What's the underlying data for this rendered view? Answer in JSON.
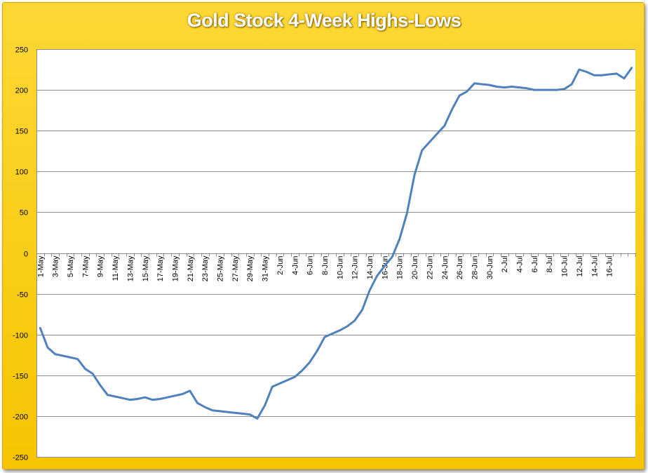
{
  "chart_data": {
    "type": "line",
    "title": "Gold Stock 4-Week Highs-Lows",
    "xlabel": "",
    "ylabel": "",
    "ylim": [
      -250,
      250
    ],
    "yticks": [
      250,
      200,
      150,
      100,
      50,
      0,
      -50,
      -100,
      -150,
      -200,
      -250
    ],
    "grid": true,
    "legend": "none",
    "x_tick_labels": [
      "1-May",
      "3-May",
      "5-May",
      "7-May",
      "9-May",
      "11-May",
      "13-May",
      "15-May",
      "17-May",
      "19-May",
      "21-May",
      "23-May",
      "25-May",
      "27-May",
      "29-May",
      "31-May",
      "2-Jun",
      "4-Jun",
      "6-Jun",
      "8-Jun",
      "10-Jun",
      "12-Jun",
      "14-Jun",
      "16-Jun",
      "18-Jun",
      "20-Jun",
      "22-Jun",
      "24-Jun",
      "26-Jun",
      "28-Jun",
      "30-Jun",
      "2-Jul",
      "4-Jul",
      "6-Jul",
      "8-Jul",
      "10-Jul",
      "12-Jul",
      "14-Jul",
      "16-Jul"
    ],
    "series": [
      {
        "color": "#4f81bd",
        "values": [
          -92,
          -116,
          -124,
          -126,
          -128,
          -130,
          -142,
          -148,
          -162,
          -174,
          -176,
          -178,
          -180,
          -179,
          -177,
          -180,
          -179,
          -177,
          -175,
          -173,
          -169,
          -184,
          -189,
          -193,
          -194,
          -195,
          -196,
          -197,
          -198,
          -203,
          -187,
          -164,
          -160,
          -156,
          -152,
          -144,
          -134,
          -120,
          -103,
          -99,
          -95,
          -90,
          -83,
          -70,
          -46,
          -28,
          -16,
          -5,
          17,
          49,
          96,
          126,
          136,
          146,
          156,
          176,
          193,
          198,
          208,
          207,
          206,
          204,
          203,
          204,
          203,
          202,
          200,
          200,
          200,
          200,
          201,
          207,
          225,
          222,
          218,
          218,
          219,
          220,
          214,
          227
        ]
      }
    ]
  },
  "colors": {
    "frame": "#f6c400",
    "plot_background": "#ffffff",
    "grid": "#8c8c8c",
    "line": "#4f81bd",
    "title_text": "#ffffff"
  }
}
